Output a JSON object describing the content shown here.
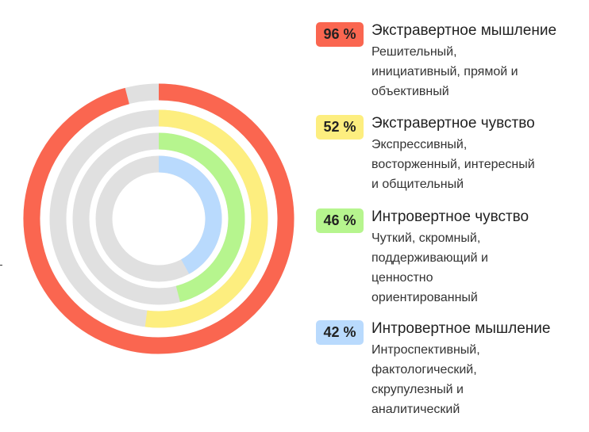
{
  "chart_data": {
    "type": "radial-bar",
    "max": 100,
    "track_color": "#e0e0e0",
    "series": [
      {
        "name": "Экстравертное мышление",
        "value": 96,
        "label": "96 %",
        "color": "#fa6650",
        "description_lines": [
          "Решительный,",
          "инициативный, прямой и",
          "объективный"
        ]
      },
      {
        "name": "Экстравертное чувство",
        "value": 52,
        "label": "52 %",
        "color": "#fdee7f",
        "description_lines": [
          "Экспрессивный,",
          "восторженный, интересный",
          "и общительный"
        ]
      },
      {
        "name": "Интровертное чувство",
        "value": 46,
        "label": "46 %",
        "color": "#b6f58e",
        "description_lines": [
          "Чуткий, скромный,",
          "поддерживающий и",
          "ценностно",
          "ориентированный"
        ]
      },
      {
        "name": "Интровертное мышление",
        "value": 42,
        "label": "42 %",
        "color": "#b9dafd",
        "description_lines": [
          "Интроспективный,",
          "фактологический,",
          "скрупулезный и",
          "аналитический"
        ]
      }
    ]
  }
}
